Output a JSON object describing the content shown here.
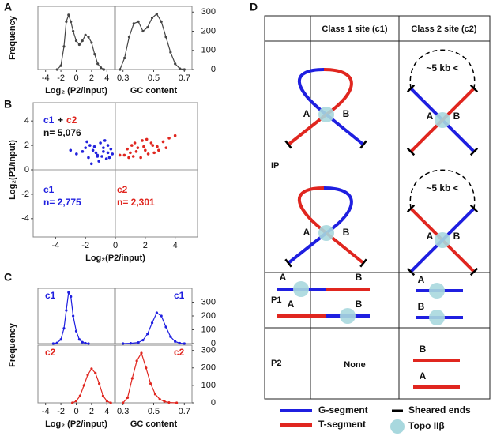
{
  "chart_data": [
    {
      "type": "line",
      "panel_label": "A",
      "ylabel": "Frequency",
      "xlabel": "Log₂ (P2/input)",
      "color": "#444444",
      "x": [
        -2.5,
        -2,
        -1.6,
        -1.3,
        -1,
        -0.7,
        -0.4,
        0,
        0.4,
        0.8,
        1.2,
        1.6,
        2,
        2.4,
        2.8,
        3.2,
        3.6
      ],
      "values": [
        0,
        20,
        120,
        250,
        285,
        250,
        200,
        150,
        130,
        150,
        180,
        170,
        140,
        80,
        30,
        10,
        0
      ],
      "xlim": [
        -5,
        5
      ],
      "xticks": [
        -4,
        -2,
        0,
        2,
        4
      ],
      "ylim": [
        0,
        330
      ]
    },
    {
      "type": "line",
      "xlabel": "GC content",
      "color": "#444444",
      "y_axis": "right",
      "x": [
        0.28,
        0.31,
        0.34,
        0.37,
        0.4,
        0.43,
        0.46,
        0.49,
        0.52,
        0.55,
        0.58,
        0.61,
        0.64,
        0.67,
        0.7
      ],
      "values": [
        0,
        60,
        170,
        240,
        250,
        200,
        220,
        270,
        290,
        250,
        170,
        90,
        30,
        5,
        0
      ],
      "xlim": [
        0.25,
        0.75
      ],
      "xticks": [
        0.3,
        0.5,
        0.7
      ],
      "ylim": [
        0,
        330
      ],
      "yticks": [
        0,
        100,
        200,
        300
      ]
    },
    {
      "type": "scatter",
      "panel_label": "B",
      "xlabel": "Log₂(P2/input)",
      "ylabel": "Log₂(P1/input)",
      "zero_lines": true,
      "xlim": [
        -5.5,
        5.5
      ],
      "xticks": [
        -4,
        -2,
        0,
        2,
        4
      ],
      "ylim": [
        -5.5,
        5.5
      ],
      "yticks": [
        -4,
        -2,
        0,
        2,
        4
      ],
      "series": [
        {
          "color": "#2222dd",
          "x": [
            -1.5,
            -1.2,
            -0.8,
            -0.5,
            -1.8,
            -2.2,
            -1.0,
            -0.3,
            -0.6,
            -1.4,
            -2.6,
            -0.9,
            -1.7,
            -0.2,
            -1.1,
            -0.7,
            -2.0,
            -1.3,
            -0.4,
            -3.0,
            -1.6,
            -0.8,
            -1.9,
            -0.5,
            -1.2
          ],
          "values": [
            1.6,
            1.2,
            1.8,
            1.4,
            1.0,
            1.5,
            2.2,
            1.7,
            0.9,
            1.9,
            1.3,
            1.1,
            2.0,
            1.3,
            0.7,
            2.4,
            1.8,
            1.4,
            1.0,
            1.6,
            0.5,
            1.5,
            2.3,
            2.0,
            1.1
          ]
        },
        {
          "color": "#e0261f",
          "x": [
            1.0,
            1.5,
            2.0,
            2.5,
            0.6,
            1.2,
            1.8,
            2.8,
            3.2,
            0.8,
            1.4,
            2.2,
            3.6,
            0.3,
            1.7,
            2.4,
            1.1,
            2.9,
            4.0,
            1.9,
            0.9,
            2.6,
            1.3,
            3.4,
            2.1
          ],
          "values": [
            1.4,
            1.8,
            1.6,
            2.0,
            1.2,
            1.1,
            2.4,
            1.9,
            2.3,
            1.7,
            1.5,
            1.3,
            2.6,
            1.2,
            1.0,
            2.2,
            2.0,
            1.6,
            2.8,
            1.9,
            1.0,
            1.4,
            2.2,
            1.8,
            2.5
          ]
        }
      ],
      "annotations": [
        {
          "text": "c1",
          "color": "#1f1fe0"
        },
        {
          "text": "+",
          "color": "#111111"
        },
        {
          "text": "c2",
          "color": "#e0261f"
        },
        {
          "text": "n= 5,076",
          "color": "#111111"
        },
        {
          "text": "c1",
          "color": "#1f1fe0"
        },
        {
          "text": "n= 2,775",
          "color": "#1f1fe0"
        },
        {
          "text": "c2",
          "color": "#e0261f"
        },
        {
          "text": "n= 2,301",
          "color": "#e0261f"
        }
      ]
    },
    {
      "type": "line",
      "panel_label": "C",
      "ylabel": "Frequency",
      "color": "#1f1fe0",
      "x": [
        -3,
        -2.5,
        -2,
        -1.6,
        -1.3,
        -1,
        -0.7,
        -0.4,
        0,
        0.4,
        0.8,
        1.2,
        1.6
      ],
      "values": [
        0,
        5,
        30,
        110,
        240,
        370,
        340,
        200,
        90,
        30,
        10,
        3,
        0
      ],
      "xlim": [
        -5,
        5
      ],
      "ylim": [
        0,
        400
      ],
      "annotations": [
        {
          "text": "c1",
          "color": "#1f1fe0"
        }
      ]
    },
    {
      "type": "line",
      "color": "#1f1fe0",
      "y_axis": "right",
      "x": [
        0.3,
        0.35,
        0.4,
        0.43,
        0.46,
        0.49,
        0.52,
        0.55,
        0.58,
        0.61,
        0.64,
        0.67,
        0.7
      ],
      "values": [
        0,
        2,
        8,
        25,
        70,
        150,
        223,
        200,
        120,
        50,
        15,
        3,
        0
      ],
      "xlim": [
        0.25,
        0.75
      ],
      "ylim": [
        0,
        400
      ],
      "yticks": [
        0,
        100,
        200,
        300
      ],
      "annotations": [
        {
          "text": "c1",
          "color": "#1f1fe0"
        }
      ]
    },
    {
      "type": "line",
      "xlabel": "Log₂ (P2/input)",
      "color": "#e0261f",
      "x": [
        -0.5,
        0,
        0.5,
        1,
        1.5,
        2,
        2.5,
        3,
        3.5,
        4,
        4.5
      ],
      "values": [
        0,
        10,
        40,
        100,
        160,
        195,
        170,
        110,
        40,
        10,
        0
      ],
      "xlim": [
        -5,
        5
      ],
      "xticks": [
        -4,
        -2,
        0,
        2,
        4
      ],
      "ylim": [
        0,
        330
      ],
      "annotations": [
        {
          "text": "c2",
          "color": "#e0261f"
        }
      ]
    },
    {
      "type": "line",
      "xlabel": "GC content",
      "color": "#e0261f",
      "y_axis": "right",
      "x": [
        0.3,
        0.33,
        0.36,
        0.39,
        0.42,
        0.45,
        0.48,
        0.51,
        0.54,
        0.57,
        0.6,
        0.65
      ],
      "values": [
        0,
        30,
        140,
        240,
        285,
        200,
        110,
        50,
        20,
        8,
        2,
        0
      ],
      "xlim": [
        0.25,
        0.75
      ],
      "xticks": [
        0.3,
        0.5,
        0.7
      ],
      "ylim": [
        0,
        330
      ],
      "yticks": [
        0,
        100,
        200,
        300
      ],
      "annotations": [
        {
          "text": "c2",
          "color": "#e0261f"
        }
      ]
    }
  ],
  "diagram": {
    "panel_label": "D",
    "columns": [
      "Class 1 site (c1)",
      "Class 2 site (c2)"
    ],
    "rows": [
      "IP",
      "P1",
      "P2"
    ],
    "site_labels": [
      "A",
      "B"
    ],
    "distance_label": "~5 kb <",
    "empty_cell": "None",
    "legend": [
      "G-segment",
      "T-segment",
      "Sheared ends",
      "Topo IIβ"
    ]
  }
}
